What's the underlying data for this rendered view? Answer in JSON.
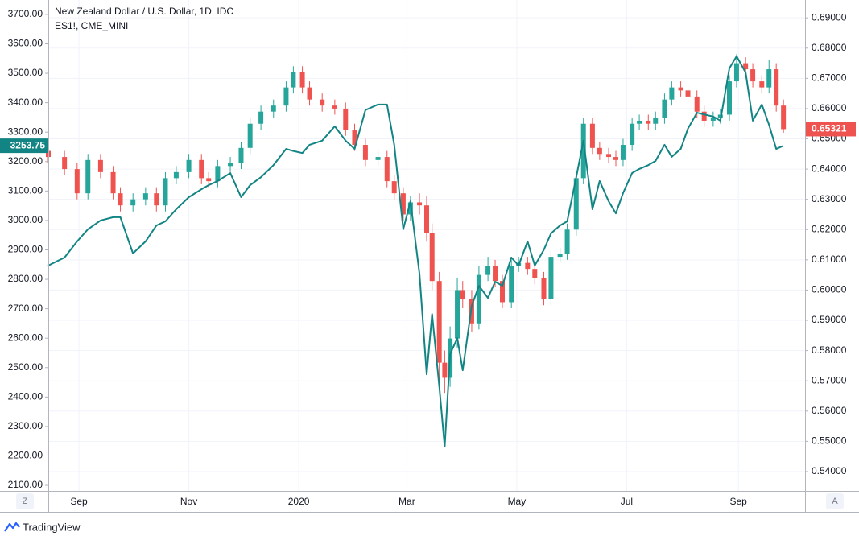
{
  "ui": {
    "zoom_button": "Z",
    "auto_button": "A",
    "brand": "TradingView"
  },
  "chart_data": {
    "type": "candlestick",
    "x": [
      0,
      9,
      16,
      22,
      29,
      36,
      40,
      47,
      54,
      60,
      65,
      71,
      78,
      85,
      89,
      94,
      101,
      107,
      112,
      118,
      125,
      132,
      136,
      141,
      145,
      152,
      159,
      165,
      170,
      176,
      183,
      188,
      192,
      197,
      201,
      206,
      210,
      213,
      217,
      220,
      223,
      227,
      230,
      235,
      239,
      244,
      248,
      252,
      257,
      261,
      266,
      270,
      275,
      279,
      284,
      288,
      293,
      297,
      302,
      306,
      311,
      315,
      319,
      324,
      328,
      333,
      337,
      342,
      346,
      351,
      355,
      360,
      364,
      369,
      373,
      378,
      382,
      387,
      391,
      396,
      400,
      404,
      408
    ],
    "xlim": [
      0,
      420
    ],
    "xticks": [
      {
        "value": 17,
        "label": "Sep"
      },
      {
        "value": 78,
        "label": "Nov"
      },
      {
        "value": 139,
        "label": "2020"
      },
      {
        "value": 199,
        "label": "Mar"
      },
      {
        "value": 260,
        "label": "May"
      },
      {
        "value": 321,
        "label": "Jul"
      },
      {
        "value": 383,
        "label": "Sep"
      }
    ],
    "ylim": [
      2081,
      3749
    ],
    "yticks": [
      {
        "value": 2100,
        "label": "2100.00"
      },
      {
        "value": 2200,
        "label": "2200.00"
      },
      {
        "value": 2300,
        "label": "2300.00"
      },
      {
        "value": 2400,
        "label": "2400.00"
      },
      {
        "value": 2500,
        "label": "2500.00"
      },
      {
        "value": 2600,
        "label": "2600.00"
      },
      {
        "value": 2700,
        "label": "2700.00"
      },
      {
        "value": 2800,
        "label": "2800.00"
      },
      {
        "value": 2900,
        "label": "2900.00"
      },
      {
        "value": 3000,
        "label": "3000.00"
      },
      {
        "value": 3100,
        "label": "3100.00"
      },
      {
        "value": 3200,
        "label": "3200.00"
      },
      {
        "value": 3300,
        "label": "3300.00"
      },
      {
        "value": 3400,
        "label": "3400.00"
      },
      {
        "value": 3500,
        "label": "3500.00"
      },
      {
        "value": 3600,
        "label": "3600.00"
      },
      {
        "value": 3700,
        "label": "3700.00"
      }
    ],
    "y2lim": [
      0.5336,
      0.6959
    ],
    "y2ticks": [
      {
        "value": 0.54,
        "label": "0.54000"
      },
      {
        "value": 0.55,
        "label": "0.55000"
      },
      {
        "value": 0.56,
        "label": "0.56000"
      },
      {
        "value": 0.57,
        "label": "0.57000"
      },
      {
        "value": 0.58,
        "label": "0.58000"
      },
      {
        "value": 0.59,
        "label": "0.59000"
      },
      {
        "value": 0.6,
        "label": "0.60000"
      },
      {
        "value": 0.61,
        "label": "0.61000"
      },
      {
        "value": 0.62,
        "label": "0.62000"
      },
      {
        "value": 0.63,
        "label": "0.63000"
      },
      {
        "value": 0.64,
        "label": "0.64000"
      },
      {
        "value": 0.65,
        "label": "0.65000"
      },
      {
        "value": 0.66,
        "label": "0.66000"
      },
      {
        "value": 0.67,
        "label": "0.67000"
      },
      {
        "value": 0.68,
        "label": "0.68000"
      },
      {
        "value": 0.69,
        "label": "0.69000"
      }
    ],
    "grid": true,
    "series": [
      {
        "name": "New Zealand Dollar / U.S. Dollar, 1D, IDC",
        "type": "candlestick",
        "axis": "y2",
        "up_color": "#26a69a",
        "down_color": "#ef5350",
        "open": [
          0.646,
          0.644,
          0.64,
          0.632,
          0.643,
          0.639,
          0.632,
          0.628,
          0.63,
          0.632,
          0.628,
          0.637,
          0.639,
          0.643,
          0.637,
          0.636,
          0.641,
          0.642,
          0.647,
          0.655,
          0.659,
          0.661,
          0.667,
          0.672,
          0.667,
          0.663,
          0.661,
          0.66,
          0.653,
          0.648,
          0.643,
          0.644,
          0.636,
          0.632,
          0.625,
          0.629,
          0.628,
          0.619,
          0.603,
          0.576,
          0.571,
          0.584,
          0.6,
          0.597,
          0.589,
          0.605,
          0.608,
          0.603,
          0.596,
          0.608,
          0.609,
          0.607,
          0.604,
          0.597,
          0.611,
          0.612,
          0.62,
          0.637,
          0.655,
          0.647,
          0.645,
          0.644,
          0.643,
          0.648,
          0.655,
          0.656,
          0.655,
          0.657,
          0.663,
          0.667,
          0.666,
          0.664,
          0.659,
          0.656,
          0.657,
          0.658,
          0.669,
          0.675,
          0.673,
          0.669,
          0.667,
          0.673,
          0.661
        ],
        "high": [
          0.648,
          0.646,
          0.642,
          0.645,
          0.645,
          0.641,
          0.634,
          0.632,
          0.634,
          0.634,
          0.639,
          0.641,
          0.645,
          0.645,
          0.639,
          0.643,
          0.644,
          0.649,
          0.657,
          0.661,
          0.663,
          0.669,
          0.674,
          0.674,
          0.669,
          0.665,
          0.663,
          0.662,
          0.655,
          0.65,
          0.646,
          0.646,
          0.638,
          0.634,
          0.631,
          0.632,
          0.631,
          0.622,
          0.606,
          0.58,
          0.588,
          0.604,
          0.603,
          0.6,
          0.608,
          0.611,
          0.61,
          0.605,
          0.61,
          0.611,
          0.611,
          0.609,
          0.606,
          0.613,
          0.614,
          0.622,
          0.639,
          0.657,
          0.657,
          0.649,
          0.647,
          0.646,
          0.65,
          0.657,
          0.658,
          0.658,
          0.659,
          0.665,
          0.669,
          0.669,
          0.668,
          0.666,
          0.661,
          0.659,
          0.66,
          0.671,
          0.678,
          0.677,
          0.675,
          0.671,
          0.676,
          0.675,
          0.663
        ],
        "low": [
          0.642,
          0.638,
          0.63,
          0.63,
          0.637,
          0.63,
          0.626,
          0.626,
          0.628,
          0.626,
          0.626,
          0.635,
          0.637,
          0.635,
          0.634,
          0.634,
          0.639,
          0.64,
          0.645,
          0.653,
          0.657,
          0.659,
          0.665,
          0.665,
          0.661,
          0.659,
          0.658,
          0.651,
          0.646,
          0.641,
          0.641,
          0.634,
          0.63,
          0.623,
          0.623,
          0.625,
          0.616,
          0.6,
          0.57,
          0.566,
          0.568,
          0.581,
          0.594,
          0.586,
          0.587,
          0.603,
          0.601,
          0.594,
          0.594,
          0.606,
          0.605,
          0.602,
          0.595,
          0.595,
          0.609,
          0.61,
          0.618,
          0.635,
          0.645,
          0.643,
          0.642,
          0.641,
          0.641,
          0.646,
          0.653,
          0.653,
          0.653,
          0.655,
          0.661,
          0.664,
          0.662,
          0.657,
          0.654,
          0.654,
          0.655,
          0.656,
          0.667,
          0.671,
          0.667,
          0.665,
          0.665,
          0.659,
          0.652
        ],
        "close": [
          0.644,
          0.64,
          0.632,
          0.643,
          0.639,
          0.632,
          0.628,
          0.63,
          0.632,
          0.628,
          0.637,
          0.639,
          0.643,
          0.637,
          0.636,
          0.641,
          0.642,
          0.647,
          0.655,
          0.659,
          0.661,
          0.667,
          0.672,
          0.667,
          0.663,
          0.661,
          0.66,
          0.653,
          0.648,
          0.643,
          0.644,
          0.636,
          0.632,
          0.625,
          0.629,
          0.628,
          0.619,
          0.603,
          0.576,
          0.571,
          0.584,
          0.6,
          0.597,
          0.589,
          0.605,
          0.608,
          0.603,
          0.596,
          0.608,
          0.609,
          0.607,
          0.604,
          0.597,
          0.611,
          0.612,
          0.62,
          0.637,
          0.655,
          0.647,
          0.645,
          0.644,
          0.643,
          0.648,
          0.655,
          0.656,
          0.655,
          0.657,
          0.663,
          0.667,
          0.666,
          0.664,
          0.659,
          0.656,
          0.657,
          0.658,
          0.669,
          0.675,
          0.673,
          0.669,
          0.667,
          0.673,
          0.661,
          0.65321
        ]
      },
      {
        "name": "ES1!, CME_MINI",
        "type": "line",
        "axis": "y",
        "color": "#138484",
        "values": [
          2847,
          2874,
          2929,
          2970,
          3000,
          3011,
          3011,
          2888,
          2929,
          2983,
          2997,
          3038,
          3079,
          3106,
          3120,
          3134,
          3161,
          3079,
          3120,
          3147,
          3188,
          3243,
          3236,
          3229,
          3257,
          3271,
          3320,
          3271,
          3243,
          3375,
          3394,
          3394,
          3257,
          2970,
          3065,
          2819,
          2477,
          2682,
          2436,
          2231,
          2546,
          2600,
          2491,
          2710,
          2778,
          2737,
          2792,
          2778,
          2874,
          2847,
          2929,
          2847,
          2900,
          2956,
          2983,
          2997,
          3147,
          3271,
          3038,
          3134,
          3065,
          3024,
          3093,
          3161,
          3175,
          3188,
          3202,
          3257,
          3216,
          3243,
          3312,
          3366,
          3360,
          3353,
          3339,
          3517,
          3558,
          3503,
          3339,
          3394,
          3325,
          3243,
          3253.75
        ]
      }
    ]
  }
}
